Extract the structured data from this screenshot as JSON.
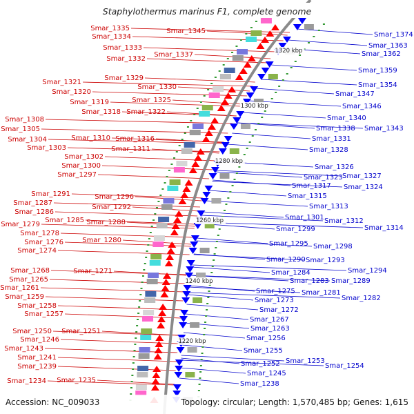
{
  "title": "Staphylothermus marinus F1, complete genome",
  "accession_text": "Accession: NC_009033",
  "summary_text": "Topology: circular; Length: 1,570,485 bp; Genes: 1,615",
  "colors": {
    "forward": "#cc0000",
    "reverse": "#0000cc",
    "backbone": "#8a8a8a",
    "forward_arrow": "#ff0000",
    "reverse_arrow": "#0000ff"
  },
  "kbp_ticks": [
    "1320 kbp",
    "1300 kbp",
    "1280 kbp",
    "1260 kbp",
    "1240 kbp",
    "1220 kbp"
  ],
  "left_genes": [
    "Smar_1335",
    "Smar_1334",
    "Smar_1345",
    "Smar_1333",
    "Smar_1337",
    "Smar_1332",
    "Smar_1321",
    "Smar_1329",
    "Smar_1330",
    "Smar_1320",
    "Smar_1319",
    "Smar_1325",
    "Smar_1318",
    "Smar_1322",
    "Smar_1308",
    "Smar_1305",
    "Smar_1310",
    "Smar_1316",
    "Smar_1304",
    "Smar_1303",
    "Smar_1311",
    "Smar_1302",
    "Smar_1300",
    "Smar_1297",
    "Smar_1291",
    "Smar_1296",
    "Smar_1287",
    "Smar_1292",
    "Smar_1286",
    "Smar_1285",
    "Smar_1288",
    "Smar_1279",
    "Smar_1278",
    "Smar_1276",
    "Smar_1280",
    "Smar_1274",
    "Smar_1271",
    "Smar_1268",
    "Smar_1265",
    "Smar_1261",
    "Smar_1259",
    "Smar_1258",
    "Smar_1257",
    "Smar_1250",
    "Smar_1251",
    "Smar_1246",
    "Smar_1243",
    "Smar_1241",
    "Smar_1239",
    "Smar_1234",
    "Smar_1235"
  ],
  "right_genes": [
    "Smar_1374",
    "Smar_1363",
    "Smar_1362",
    "Smar_1359",
    "Smar_1354",
    "Smar_1347",
    "Smar_1346",
    "Smar_1340",
    "Smar_1343",
    "Smar_1338",
    "Smar_1331",
    "Smar_1328",
    "Smar_1326",
    "Smar_1327",
    "Smar_1323",
    "Smar_1324",
    "Smar_1317",
    "Smar_1315",
    "Smar_1313",
    "Smar_1301",
    "Smar_1312",
    "Smar_1314",
    "Smar_1299",
    "Smar_1295",
    "Smar_1298",
    "Smar_1290",
    "Smar_1293",
    "Smar_1294",
    "Smar_1284",
    "Smar_1289",
    "Smar_1283",
    "Smar_1281",
    "Smar_1282",
    "Smar_1275",
    "Smar_1273",
    "Smar_1272",
    "Smar_1267",
    "Smar_1263",
    "Smar_1256",
    "Smar_1255",
    "Smar_1253",
    "Smar_1254",
    "Smar_1252",
    "Smar_1245",
    "Smar_1238"
  ]
}
